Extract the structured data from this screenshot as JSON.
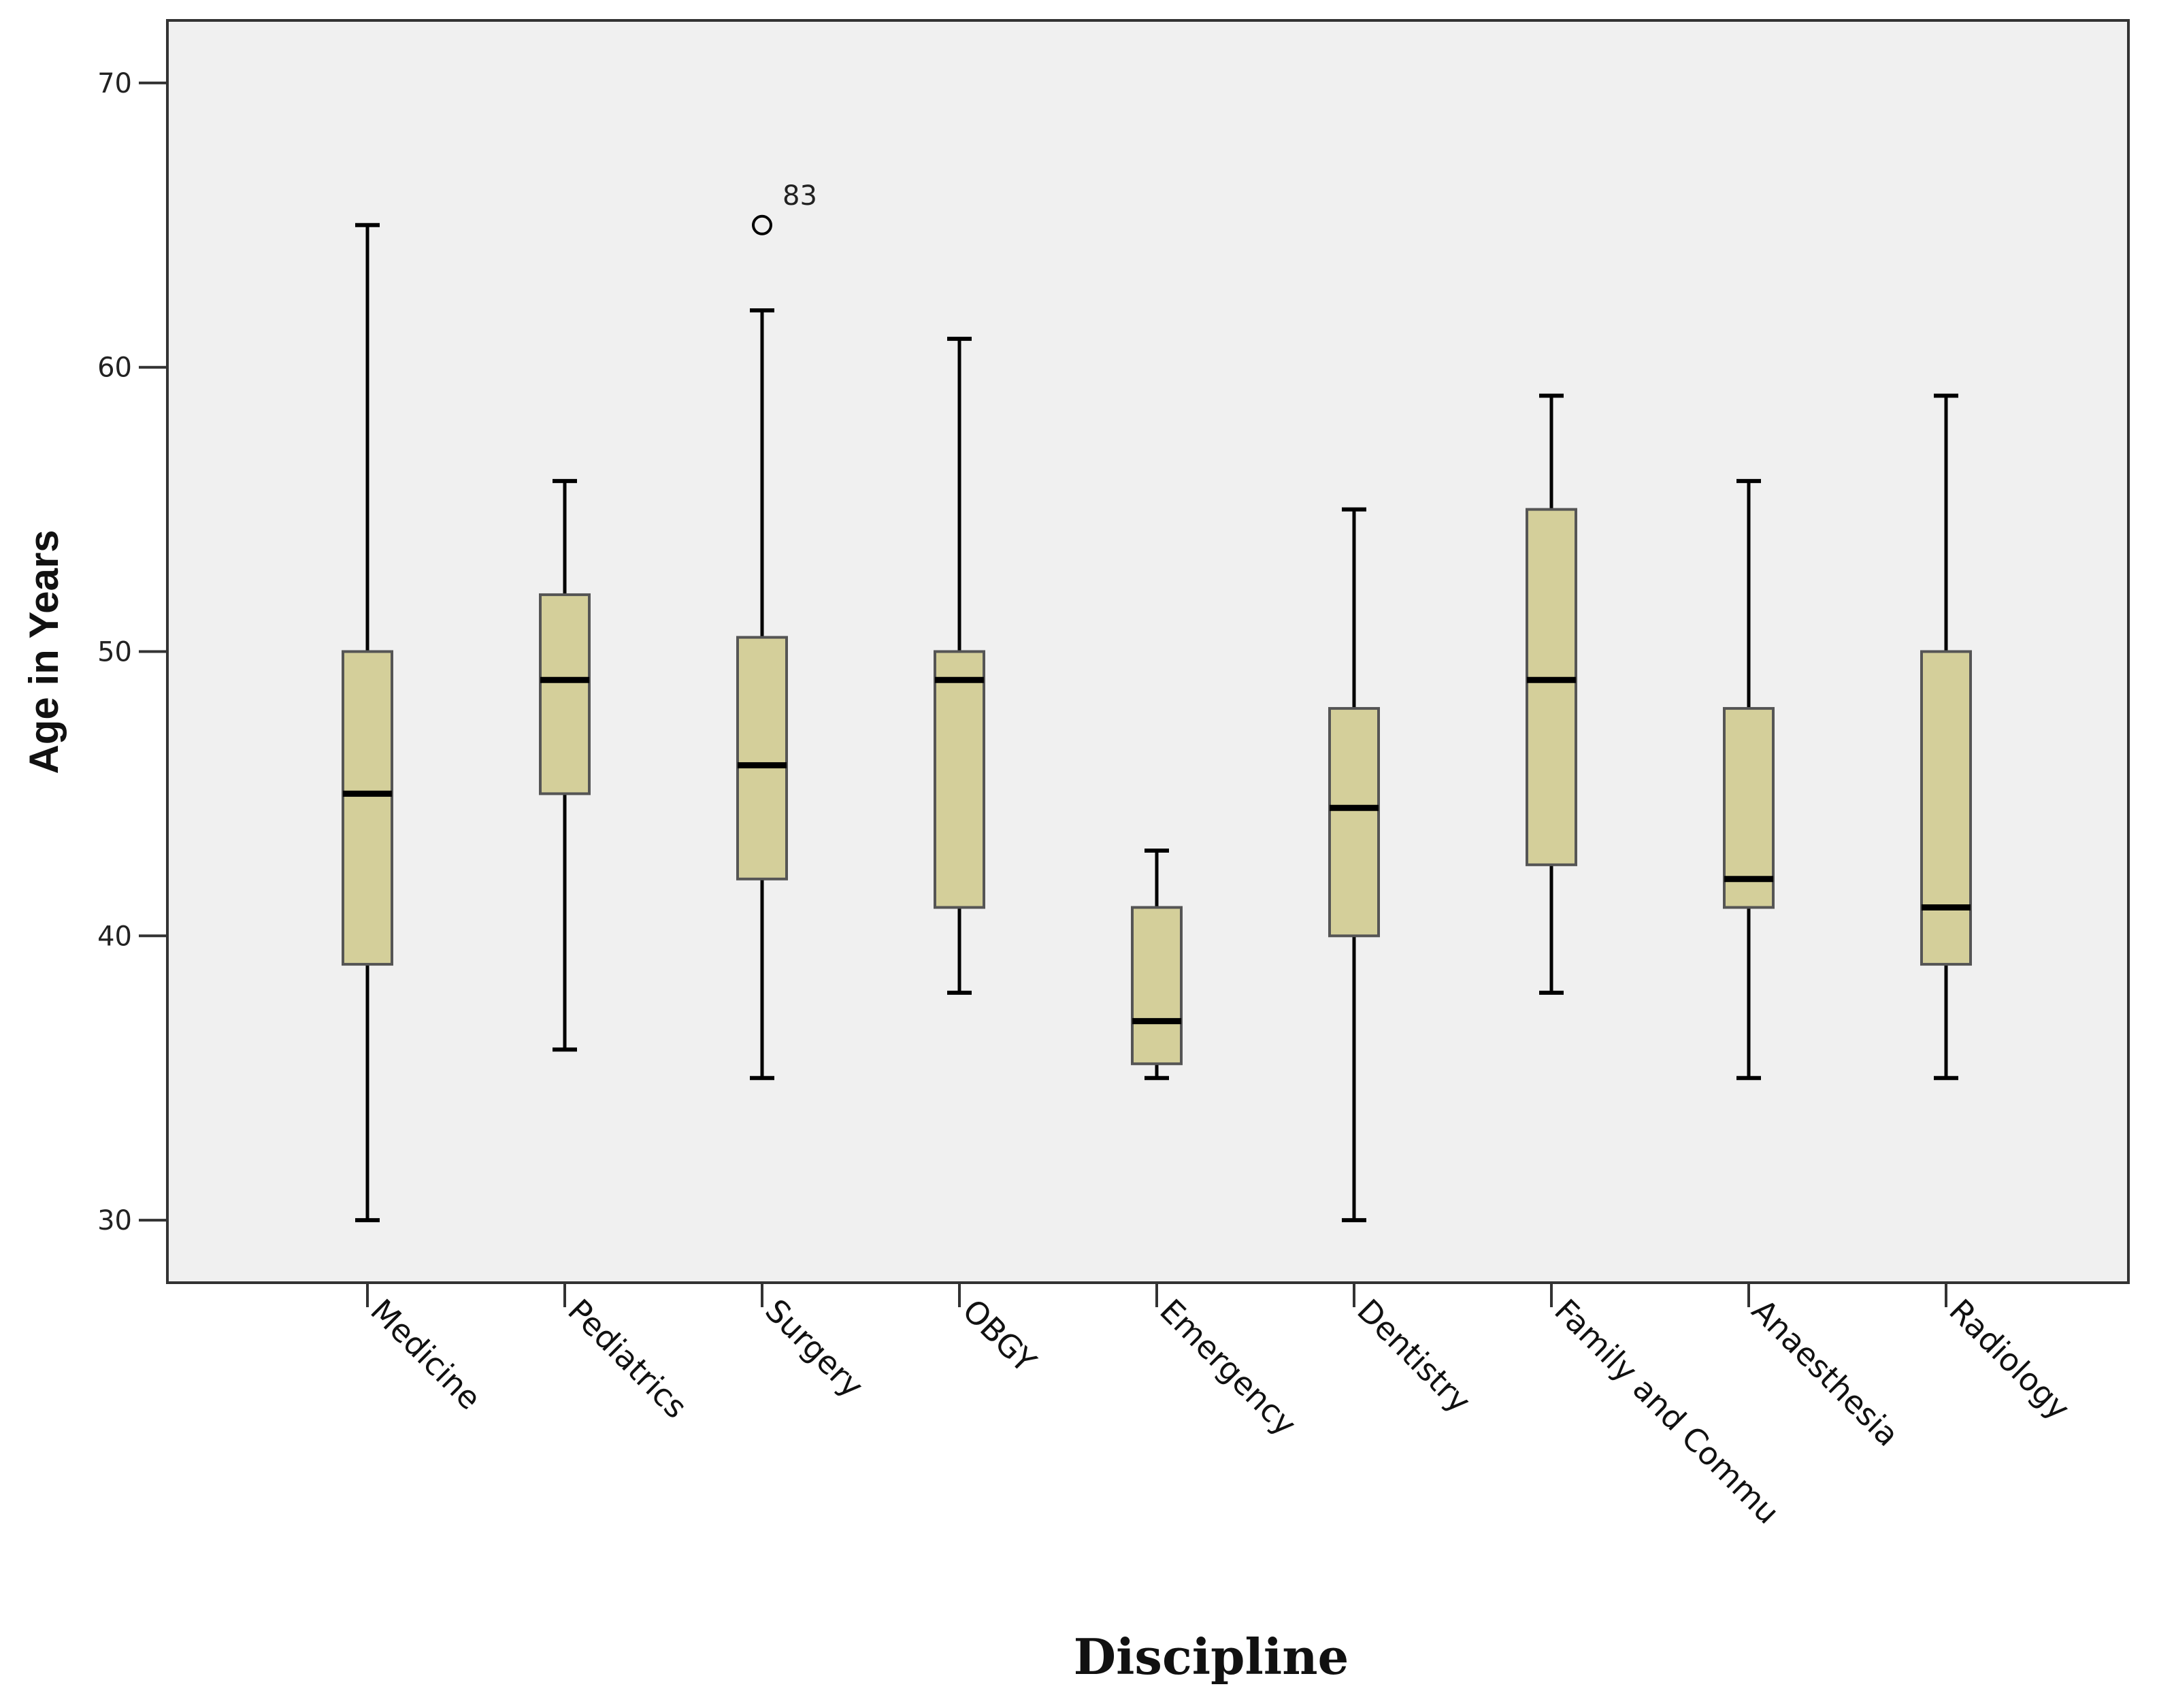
{
  "chart_data": {
    "type": "boxplot",
    "title": "",
    "xlabel": "Discipline",
    "ylabel": "Age in Years",
    "ylim": [
      27.8,
      72.2
    ],
    "yticks": [
      30,
      40,
      50,
      60,
      70
    ],
    "grid": false,
    "colors": {
      "plot_background": "#f0f0f0",
      "box_fill": "#d4cf9a",
      "box_edge": "#555555",
      "whisker": "#000000",
      "axis": "#333333"
    },
    "categories": [
      "Medicine",
      "Pediatrics",
      "Surgery",
      "OBGY",
      "Emergency",
      "Dentistry",
      "Family and Community",
      "Anaesthesia",
      "Radiology"
    ],
    "category_display": [
      "Medicine",
      "Pediatrics",
      "Surgery",
      "OBGY",
      "Emergency",
      "Dentistry",
      "Family and Commu",
      "Anaesthesia",
      "Radiology"
    ],
    "boxes": [
      {
        "name": "Medicine",
        "min": 30,
        "q1": 39,
        "median": 45,
        "q3": 50,
        "max": 65
      },
      {
        "name": "Pediatrics",
        "min": 36,
        "q1": 45,
        "median": 49,
        "q3": 52,
        "max": 56
      },
      {
        "name": "Surgery",
        "min": 35,
        "q1": 42,
        "median": 46,
        "q3": 50.5,
        "max": 62
      },
      {
        "name": "OBGY",
        "min": 38,
        "q1": 41,
        "median": 49,
        "q3": 50,
        "max": 61
      },
      {
        "name": "Emergency",
        "min": 35,
        "q1": 35.5,
        "median": 37,
        "q3": 41,
        "max": 43
      },
      {
        "name": "Dentistry",
        "min": 30,
        "q1": 40,
        "median": 44.5,
        "q3": 48,
        "max": 55
      },
      {
        "name": "Family and Community",
        "min": 38,
        "q1": 42.5,
        "median": 49,
        "q3": 55,
        "max": 59
      },
      {
        "name": "Anaesthesia",
        "min": 35,
        "q1": 41,
        "median": 42,
        "q3": 48,
        "max": 56
      },
      {
        "name": "Radiology",
        "min": 35,
        "q1": 39,
        "median": 41,
        "q3": 50,
        "max": 59
      }
    ],
    "outliers": [
      {
        "category": "Surgery",
        "value": 65,
        "label": "83"
      }
    ]
  }
}
